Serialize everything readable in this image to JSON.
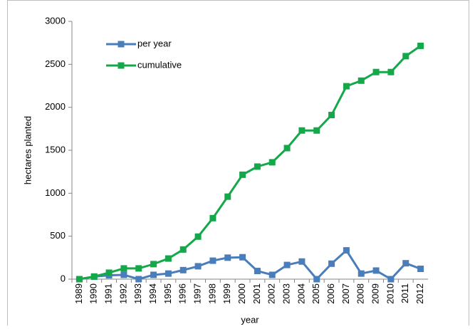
{
  "chart_data": {
    "type": "line",
    "x_label": "year",
    "y_label": "hectares planted",
    "categories": [
      "1989",
      "1990",
      "1991",
      "1992",
      "1993",
      "1994",
      "1995",
      "1996",
      "1997",
      "1998",
      "1999",
      "2000",
      "2001",
      "2002",
      "2003",
      "2004",
      "2005",
      "2006",
      "2007",
      "2008",
      "2009",
      "2010",
      "2011",
      "2012"
    ],
    "series": [
      {
        "name": "per year",
        "color": "#4a7ebb",
        "values": [
          0,
          30,
          45,
          50,
          0,
          50,
          65,
          105,
          150,
          215,
          250,
          255,
          95,
          50,
          165,
          205,
          0,
          180,
          335,
          65,
          100,
          0,
          185,
          120
        ]
      },
      {
        "name": "cumulative",
        "color": "#14a84a",
        "values": [
          0,
          30,
          75,
          125,
          125,
          175,
          240,
          345,
          495,
          710,
          960,
          1215,
          1310,
          1360,
          1525,
          1730,
          1730,
          1910,
          2245,
          2310,
          2410,
          2410,
          2595,
          2715
        ]
      }
    ],
    "ylim": [
      0,
      3000
    ],
    "yticks": [
      0,
      500,
      1000,
      1500,
      2000,
      2500,
      3000
    ],
    "grid": false,
    "legend": "upper-left"
  }
}
